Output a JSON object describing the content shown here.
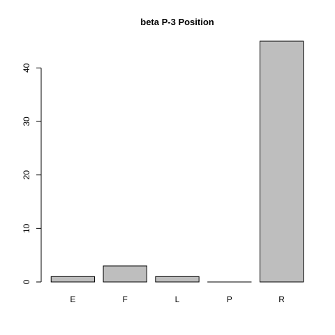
{
  "chart_data": {
    "type": "bar",
    "title": "beta P-3 Position",
    "xlabel": "",
    "ylabel": "",
    "categories": [
      "E",
      "F",
      "L",
      "P",
      "R"
    ],
    "values": [
      1,
      3,
      1,
      0,
      45
    ],
    "ylim": [
      0,
      45
    ],
    "yticks": [
      0,
      10,
      20,
      30,
      40
    ],
    "grid": false,
    "colors": {
      "bar_fill": "#bebebe",
      "bar_stroke": "#000000"
    }
  }
}
